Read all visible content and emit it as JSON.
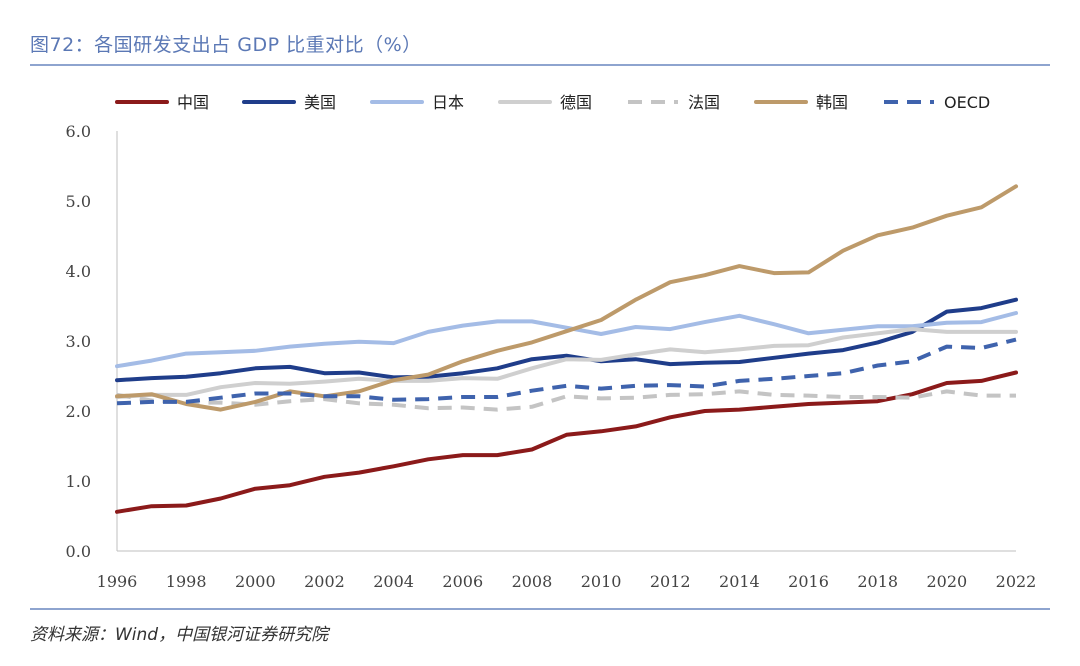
{
  "header": {
    "title": "图72：各国研发支出占 GDP 比重对比（%）"
  },
  "footer": {
    "source": "资料来源：Wind，中国银河证券研究院"
  },
  "chart_data": {
    "type": "line",
    "x": [
      1996,
      1997,
      1998,
      1999,
      2000,
      2001,
      2002,
      2003,
      2004,
      2005,
      2006,
      2007,
      2008,
      2009,
      2010,
      2011,
      2012,
      2013,
      2014,
      2015,
      2016,
      2017,
      2018,
      2019,
      2020,
      2021,
      2022
    ],
    "x_ticks": [
      "1996",
      "1998",
      "2000",
      "2002",
      "2004",
      "2006",
      "2008",
      "2010",
      "2012",
      "2014",
      "2016",
      "2018",
      "2020",
      "2022"
    ],
    "y_ticks": [
      "0.0",
      "1.0",
      "2.0",
      "3.0",
      "4.0",
      "5.0",
      "6.0"
    ],
    "ylim": [
      0,
      6
    ],
    "legend_position": "top",
    "series": [
      {
        "name": "中国",
        "color": "#8b1a1a",
        "dash": false,
        "values": [
          0.56,
          0.64,
          0.65,
          0.75,
          0.89,
          0.94,
          1.06,
          1.12,
          1.21,
          1.31,
          1.37,
          1.37,
          1.45,
          1.66,
          1.71,
          1.78,
          1.91,
          2.0,
          2.02,
          2.06,
          2.1,
          2.12,
          2.14,
          2.24,
          2.4,
          2.43,
          2.55
        ]
      },
      {
        "name": "美国",
        "color": "#1f3d8a",
        "dash": false,
        "values": [
          2.44,
          2.47,
          2.49,
          2.54,
          2.61,
          2.63,
          2.54,
          2.55,
          2.48,
          2.49,
          2.54,
          2.61,
          2.74,
          2.79,
          2.71,
          2.74,
          2.67,
          2.69,
          2.7,
          2.76,
          2.82,
          2.87,
          2.98,
          3.13,
          3.42,
          3.47,
          3.59
        ]
      },
      {
        "name": "日本",
        "color": "#a4bce6",
        "dash": false,
        "values": [
          2.64,
          2.72,
          2.82,
          2.84,
          2.86,
          2.92,
          2.96,
          2.99,
          2.97,
          3.13,
          3.22,
          3.28,
          3.28,
          3.19,
          3.1,
          3.2,
          3.17,
          3.27,
          3.36,
          3.24,
          3.11,
          3.16,
          3.21,
          3.21,
          3.26,
          3.27,
          3.4
        ]
      },
      {
        "name": "德国",
        "color": "#cfcfcf",
        "dash": false,
        "values": [
          2.2,
          2.23,
          2.23,
          2.34,
          2.4,
          2.39,
          2.42,
          2.46,
          2.43,
          2.43,
          2.47,
          2.46,
          2.61,
          2.74,
          2.73,
          2.81,
          2.88,
          2.84,
          2.88,
          2.93,
          2.94,
          3.05,
          3.11,
          3.17,
          3.13,
          3.13,
          3.13
        ]
      },
      {
        "name": "法国",
        "color": "#c4c4c4",
        "dash": true,
        "values": [
          2.23,
          2.15,
          2.12,
          2.12,
          2.09,
          2.14,
          2.17,
          2.11,
          2.09,
          2.04,
          2.05,
          2.02,
          2.06,
          2.21,
          2.18,
          2.19,
          2.23,
          2.24,
          2.28,
          2.23,
          2.22,
          2.2,
          2.2,
          2.19,
          2.28,
          2.22,
          2.22
        ]
      },
      {
        "name": "韩国",
        "color": "#bd9a6a",
        "dash": false,
        "values": [
          2.21,
          2.24,
          2.1,
          2.02,
          2.13,
          2.28,
          2.21,
          2.28,
          2.44,
          2.52,
          2.71,
          2.86,
          2.98,
          3.14,
          3.3,
          3.59,
          3.84,
          3.94,
          4.07,
          3.97,
          3.98,
          4.29,
          4.51,
          4.62,
          4.79,
          4.91,
          5.21
        ]
      },
      {
        "name": "OECD",
        "color": "#3f63ad",
        "dash": true,
        "values": [
          2.11,
          2.13,
          2.13,
          2.19,
          2.25,
          2.25,
          2.21,
          2.21,
          2.16,
          2.17,
          2.2,
          2.2,
          2.29,
          2.36,
          2.32,
          2.36,
          2.37,
          2.35,
          2.43,
          2.46,
          2.5,
          2.54,
          2.65,
          2.71,
          2.92,
          2.9,
          3.02
        ]
      }
    ]
  }
}
